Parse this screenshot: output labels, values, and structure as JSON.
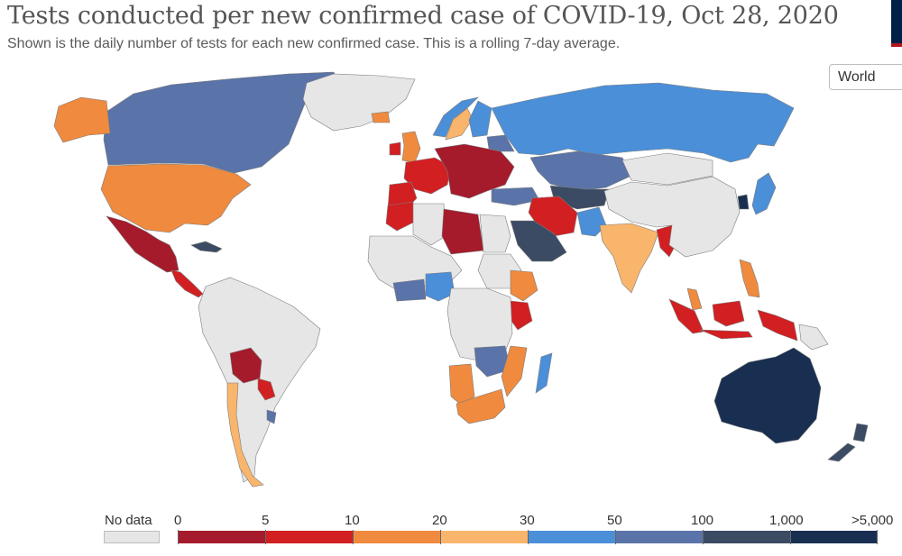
{
  "header": {
    "title": "Tests conducted per new confirmed case of COVID-19, Oct 28, 2020",
    "subtitle": "Shown is the daily number of tests for each new confirmed case. This is a rolling 7-day average."
  },
  "region_selector": {
    "value": "World"
  },
  "colors": {
    "no_data": "#e6e6e6",
    "bins": [
      "#a51b2b",
      "#d21f22",
      "#ef8a3e",
      "#f9b56c",
      "#4b8fd9",
      "#5a73a8",
      "#3c4b64",
      "#192f52"
    ],
    "ocean": "#ffffff",
    "border": "#7d7d7d"
  },
  "legend": {
    "no_data_label": "No data",
    "tick_labels": [
      "0",
      "5",
      "10",
      "20",
      "30",
      "50",
      "100",
      "1,000",
      ">5,000"
    ]
  },
  "regions": [
    {
      "name": "Canada",
      "bin": 5
    },
    {
      "name": "Alaska (United States)",
      "bin": 2
    },
    {
      "name": "United States",
      "bin": 2
    },
    {
      "name": "Greenland",
      "bin": -1
    },
    {
      "name": "Mexico",
      "bin": 0
    },
    {
      "name": "Cuba",
      "bin": 6
    },
    {
      "name": "Central America",
      "bin": 1
    },
    {
      "name": "South America",
      "bin": -1
    },
    {
      "name": "Bolivia",
      "bin": 0
    },
    {
      "name": "Paraguay",
      "bin": 1
    },
    {
      "name": "Chile",
      "bin": 3
    },
    {
      "name": "Argentina",
      "bin": -1
    },
    {
      "name": "Uruguay",
      "bin": 5
    },
    {
      "name": "Iceland",
      "bin": 2
    },
    {
      "name": "Ireland",
      "bin": 1
    },
    {
      "name": "United Kingdom",
      "bin": 2
    },
    {
      "name": "Norway",
      "bin": 4
    },
    {
      "name": "Sweden",
      "bin": 3
    },
    {
      "name": "Finland",
      "bin": 4
    },
    {
      "name": "Western Europe",
      "bin": 1
    },
    {
      "name": "Central Europe",
      "bin": 0
    },
    {
      "name": "Iberian Peninsula",
      "bin": 1
    },
    {
      "name": "Baltics and Belarus",
      "bin": 5
    },
    {
      "name": "Russia",
      "bin": 4
    },
    {
      "name": "Kazakhstan",
      "bin": 5
    },
    {
      "name": "Central Asia",
      "bin": 6
    },
    {
      "name": "Turkey",
      "bin": 5
    },
    {
      "name": "Iraq and Iran",
      "bin": 1
    },
    {
      "name": "Saudi Arabia",
      "bin": 6
    },
    {
      "name": "Pakistan",
      "bin": 4
    },
    {
      "name": "India",
      "bin": 3
    },
    {
      "name": "Myanmar",
      "bin": 1
    },
    {
      "name": "Mongolia",
      "bin": -1
    },
    {
      "name": "China",
      "bin": -1
    },
    {
      "name": "Korea",
      "bin": 7
    },
    {
      "name": "Japan",
      "bin": 4
    },
    {
      "name": "Philippines",
      "bin": 2
    },
    {
      "name": "Malaysia",
      "bin": 2
    },
    {
      "name": "Indonesia",
      "bin": 1
    },
    {
      "name": "Papua New Guinea",
      "bin": -1
    },
    {
      "name": "Australia",
      "bin": 7
    },
    {
      "name": "New Zealand",
      "bin": 6
    },
    {
      "name": "Morocco",
      "bin": 1
    },
    {
      "name": "Algeria",
      "bin": -1
    },
    {
      "name": "Libya",
      "bin": 0
    },
    {
      "name": "Egypt",
      "bin": -1
    },
    {
      "name": "Sudan",
      "bin": -1
    },
    {
      "name": "West Africa",
      "bin": -1
    },
    {
      "name": "Ghana",
      "bin": 5
    },
    {
      "name": "Nigeria",
      "bin": 4
    },
    {
      "name": "Ethiopia",
      "bin": 2
    },
    {
      "name": "Kenya",
      "bin": 1
    },
    {
      "name": "Central Africa",
      "bin": -1
    },
    {
      "name": "Namibia",
      "bin": 2
    },
    {
      "name": "Zambia and Zimbabwe",
      "bin": 5
    },
    {
      "name": "Mozambique",
      "bin": 2
    },
    {
      "name": "South Africa",
      "bin": 2
    },
    {
      "name": "Madagascar",
      "bin": 4
    }
  ]
}
